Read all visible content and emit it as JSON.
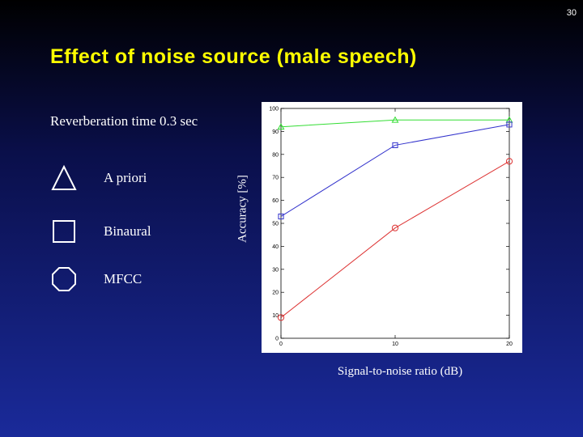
{
  "page_number": "30",
  "title": "Effect of noise source (male speech)",
  "subtitle": "Reverberation time 0.3 sec",
  "legend": [
    {
      "label": "A priori",
      "shape": "triangle"
    },
    {
      "label": "Binaural",
      "shape": "square"
    },
    {
      "label": "MFCC",
      "shape": "octagon"
    }
  ],
  "chart_data": {
    "type": "line",
    "xlabel": "Signal-to-noise ratio (dB)",
    "ylabel": "Accuracy [%]",
    "x": [
      0,
      10,
      20
    ],
    "xticks": [
      0,
      10,
      20
    ],
    "yticks": [
      0,
      10,
      20,
      30,
      40,
      50,
      60,
      70,
      80,
      90,
      100
    ],
    "xlim": [
      0,
      20
    ],
    "ylim": [
      0,
      100
    ],
    "grid": false,
    "series": [
      {
        "name": "A priori",
        "marker": "triangle",
        "color": "#33dd33",
        "values": [
          92,
          95,
          95
        ]
      },
      {
        "name": "Binaural",
        "marker": "square",
        "color": "#3333cc",
        "values": [
          53,
          84,
          93
        ]
      },
      {
        "name": "MFCC",
        "marker": "circle",
        "color": "#dd3333",
        "values": [
          9,
          48,
          77
        ]
      }
    ]
  }
}
